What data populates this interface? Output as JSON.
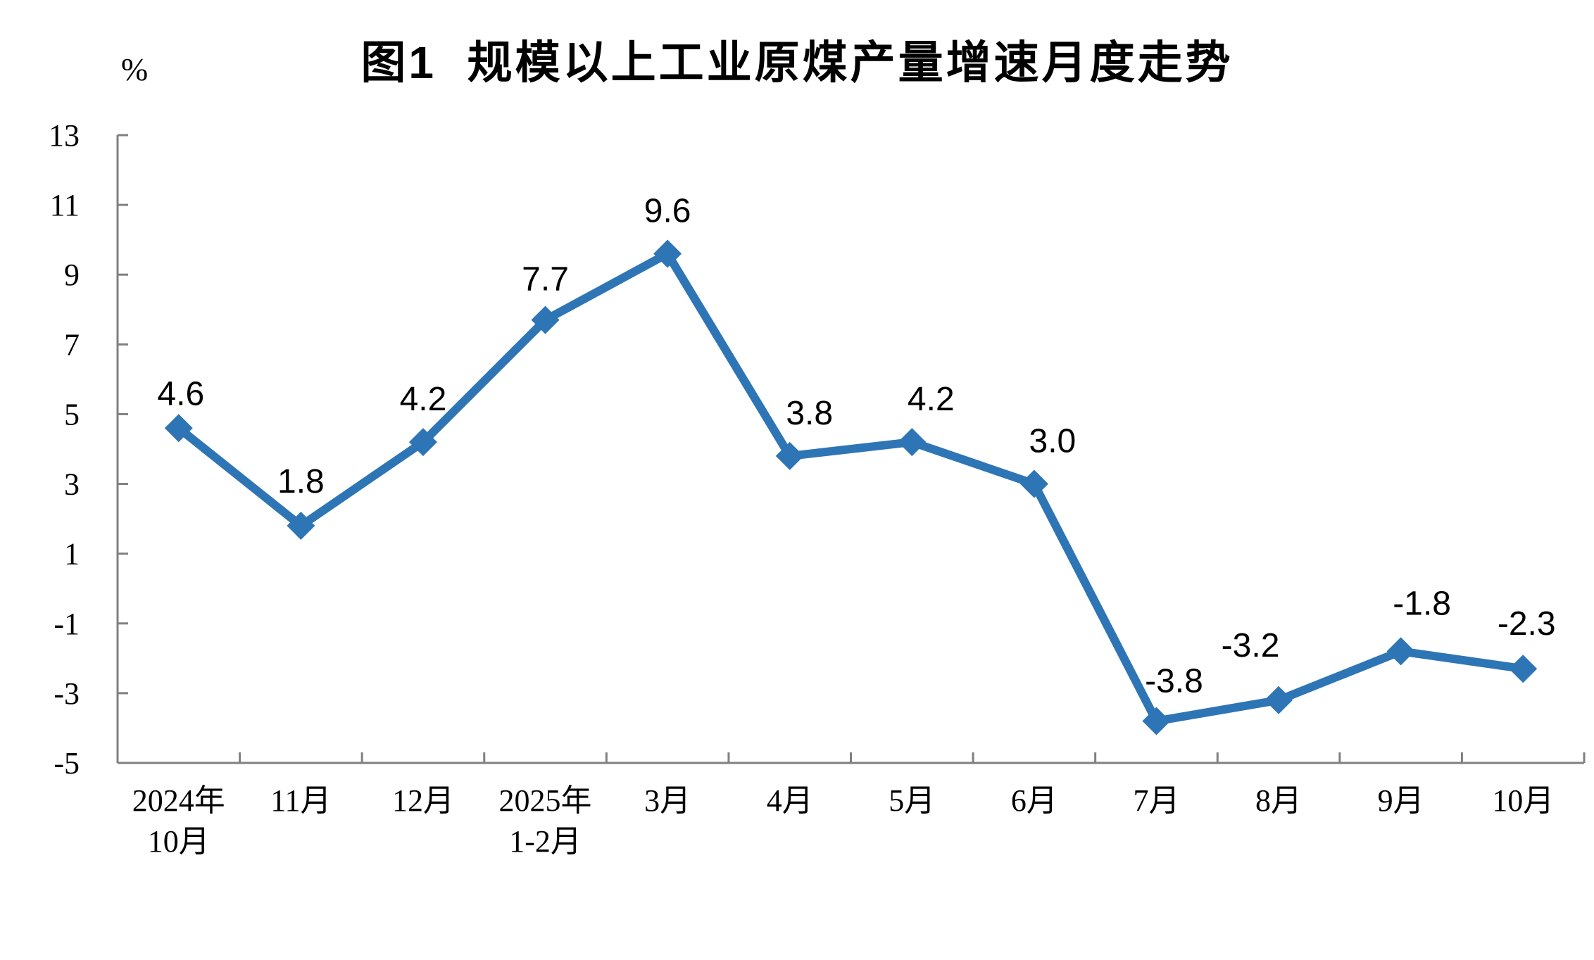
{
  "chart_data": {
    "type": "line",
    "title": "图1  规模以上工业原煤产量增速月度走势",
    "ylabel": "%",
    "xlabel": "",
    "categories": [
      "2024年10月",
      "11月",
      "12月",
      "2025年1-2月",
      "3月",
      "4月",
      "5月",
      "6月",
      "7月",
      "8月",
      "9月",
      "10月"
    ],
    "category_lines": [
      [
        "2024年",
        "10月"
      ],
      [
        "11月"
      ],
      [
        "12月"
      ],
      [
        "2025年",
        "1-2月"
      ],
      [
        "3月"
      ],
      [
        "4月"
      ],
      [
        "5月"
      ],
      [
        "6月"
      ],
      [
        "7月"
      ],
      [
        "8月"
      ],
      [
        "9月"
      ],
      [
        "10月"
      ]
    ],
    "values": [
      4.6,
      1.8,
      4.2,
      7.7,
      9.6,
      3.8,
      4.2,
      3.0,
      -3.8,
      -3.2,
      -1.8,
      -2.3
    ],
    "point_labels": [
      "4.6",
      "1.8",
      "4.2",
      "7.7",
      "9.6",
      "3.8",
      "4.2",
      "3.0",
      "-3.8",
      "-3.2",
      "-1.8",
      "-2.3"
    ],
    "y_ticks": [
      13,
      11,
      9,
      7,
      5,
      3,
      1,
      -1,
      -3,
      -5
    ],
    "ylim": [
      -5,
      13
    ],
    "grid": false,
    "legend": "none",
    "marker": "diamond",
    "colors": {
      "line": "#2E75B6",
      "marker": "#2E75B6",
      "axis": "#808080",
      "text": "#000000"
    }
  }
}
